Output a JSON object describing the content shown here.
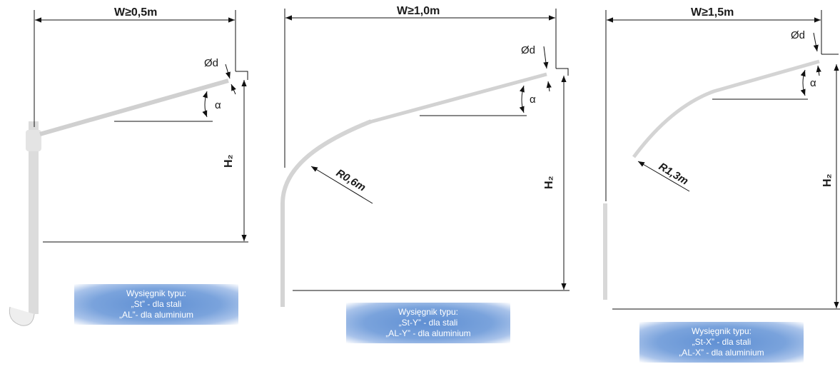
{
  "panels": [
    {
      "width_label": "W≥0,5m",
      "diameter_label": "Ød",
      "angle_label": "α",
      "height_label": "H₂",
      "radius_label": "",
      "caption": [
        "Wysięgnik typu:",
        "„St” - dla stali",
        "„AL”- dla aluminium"
      ]
    },
    {
      "width_label": "W≥1,0m",
      "diameter_label": "Ød",
      "angle_label": "α",
      "height_label": "H₂",
      "radius_label": "R0,6m",
      "caption": [
        "Wysięgnik typu:",
        "„St-Y” - dla stali",
        "„AL-Y” - dla aluminium"
      ]
    },
    {
      "width_label": "W≥1,5m",
      "diameter_label": "Ød",
      "angle_label": "α",
      "height_label": "H₂",
      "radius_label": "R1,3m",
      "caption": [
        "Wysięgnik typu:",
        "„St-X” - dla stali",
        "„AL-X” - dla aluminium"
      ]
    }
  ],
  "colors": {
    "line": "#111111",
    "pole": "#d6d6d6",
    "caption_bg": "#6f9ad8"
  }
}
